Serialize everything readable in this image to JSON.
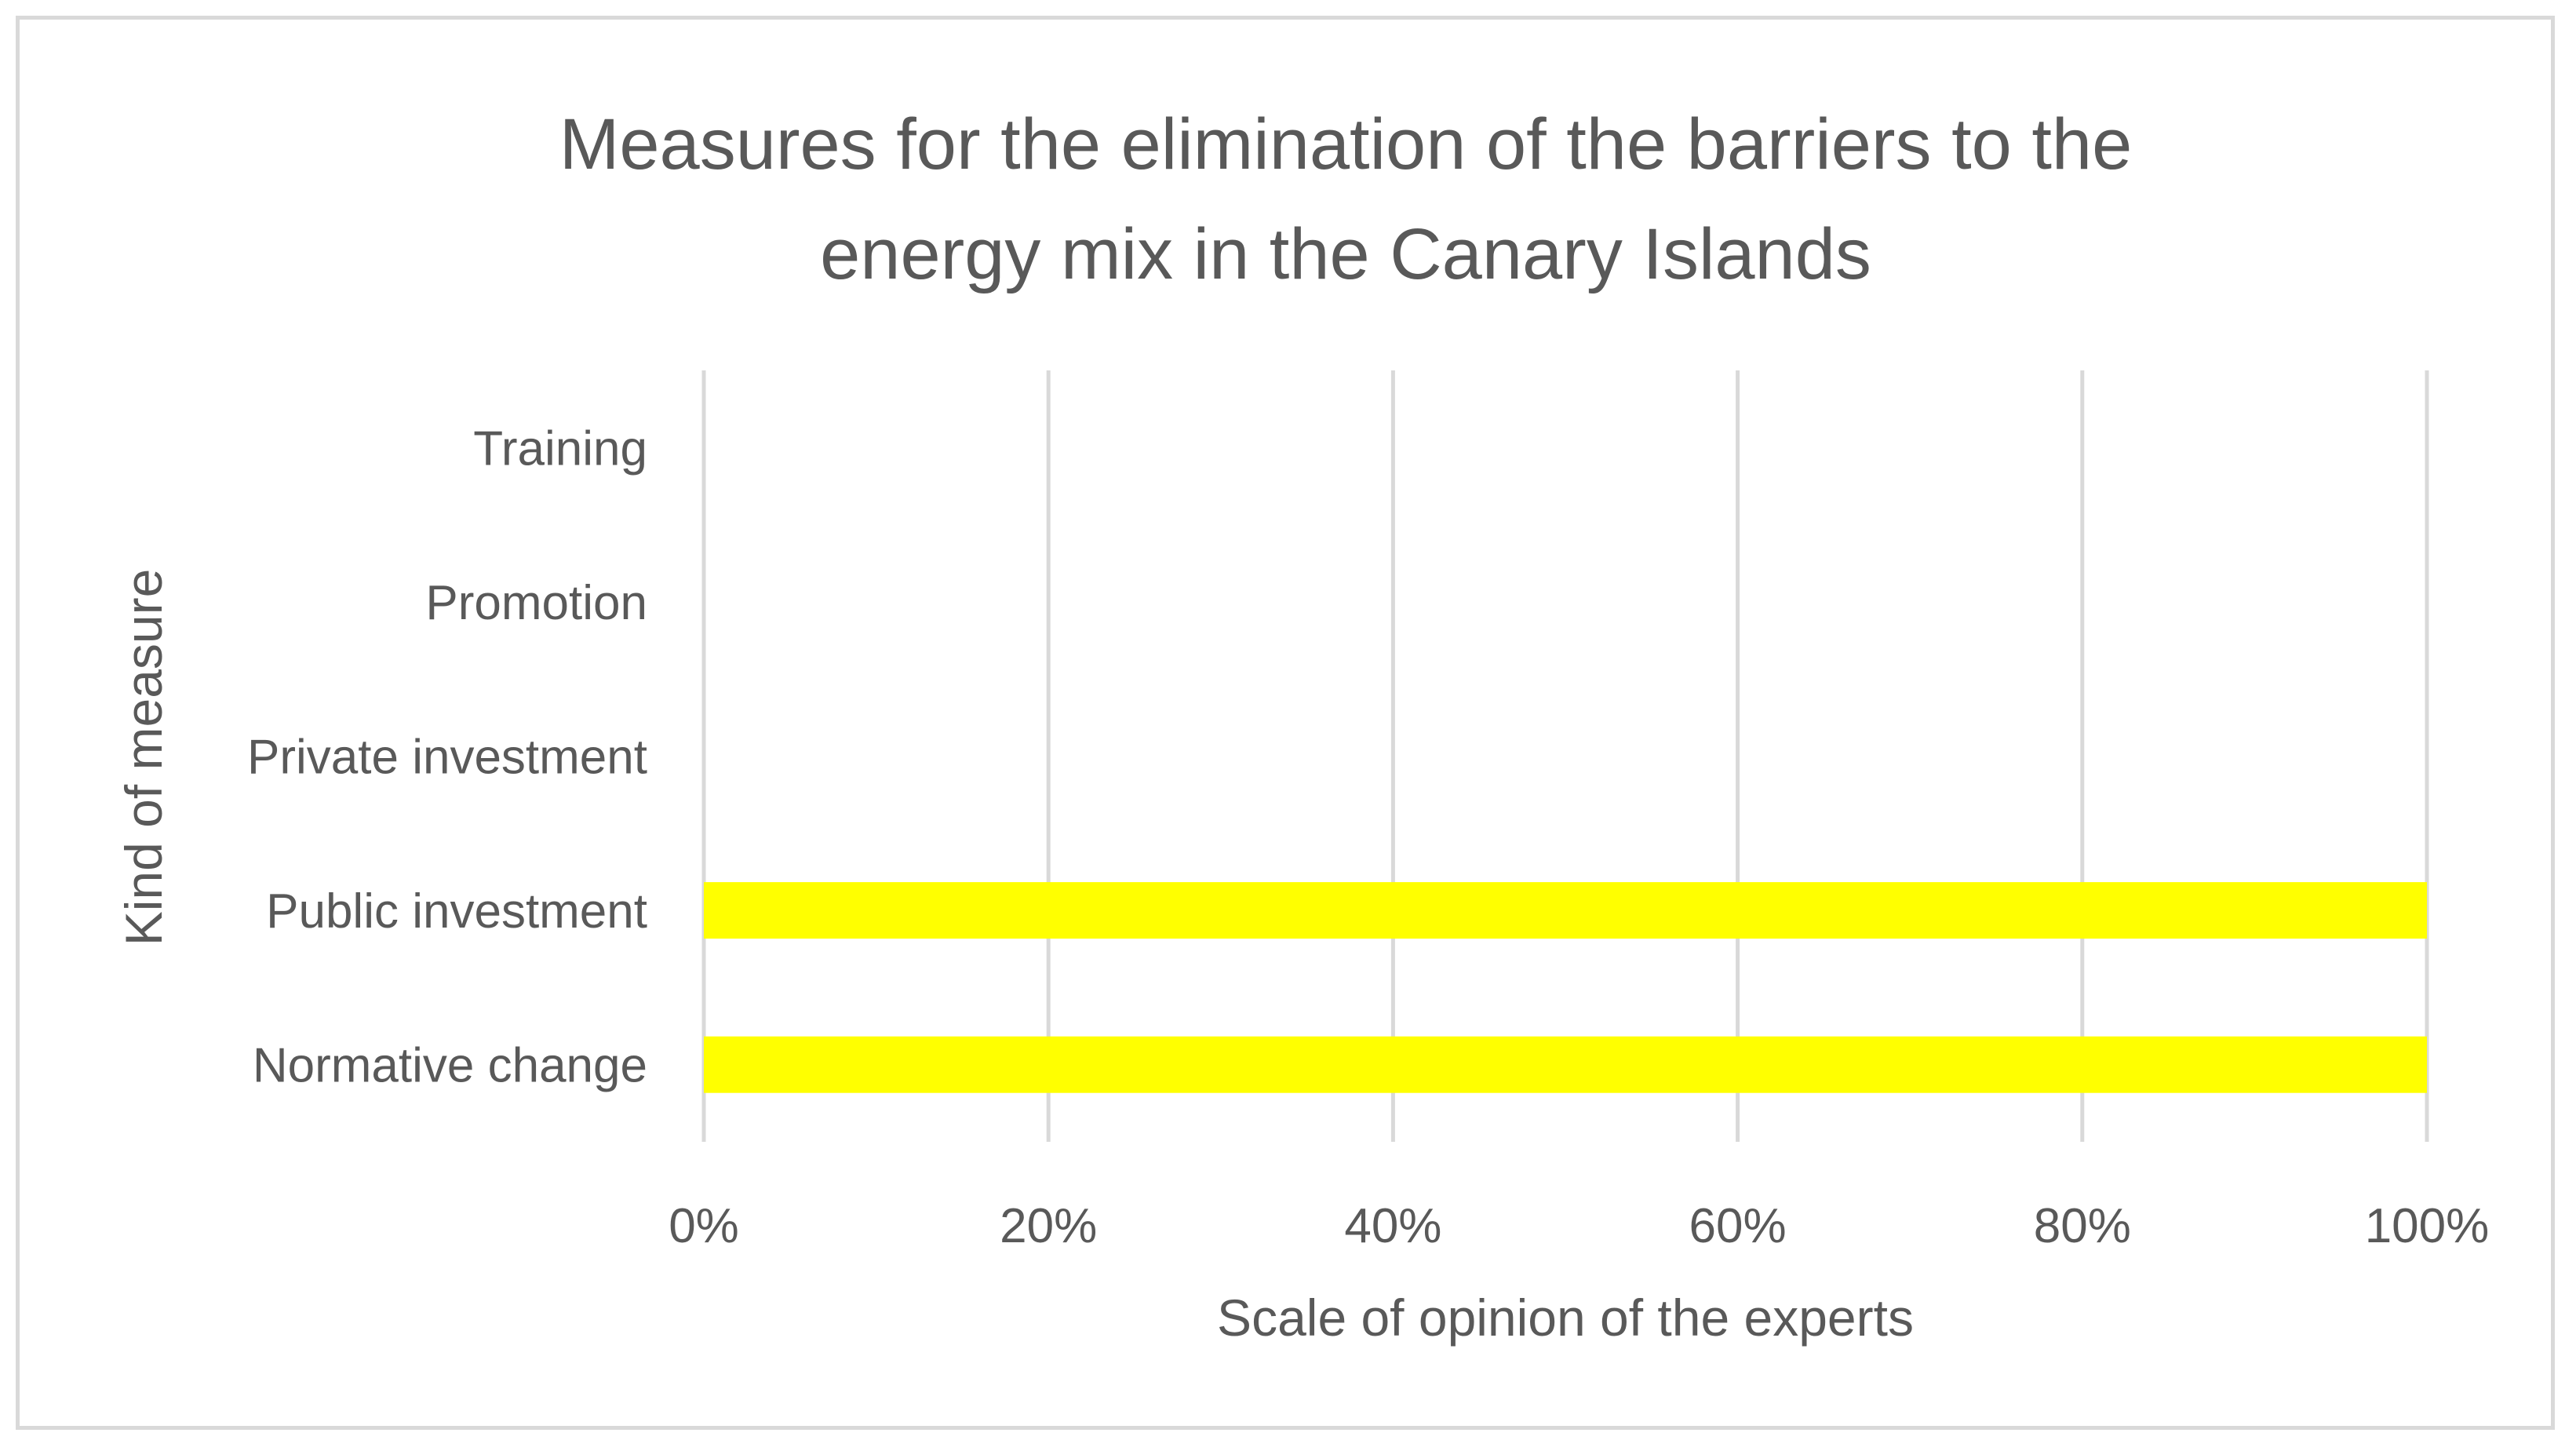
{
  "chart_data": {
    "type": "bar",
    "orientation": "horizontal",
    "title_lines": [
      "Measures for the elimination of the barriers to the",
      "energy mix in the Canary Islands"
    ],
    "xlabel": "Scale of opinion of the experts",
    "ylabel": "Kind of measure",
    "categories": [
      "Training",
      "Promotion",
      "Private investment",
      "Public investment",
      "Normative change"
    ],
    "values": [
      0,
      0,
      0,
      100,
      100
    ],
    "xlim": [
      0,
      100
    ],
    "x_ticks": [
      "0%",
      "20%",
      "40%",
      "60%",
      "80%",
      "100%"
    ],
    "grid": "vertical",
    "legend": "none",
    "bar_color": "#ffff00",
    "grid_color": "#d9d9d9",
    "text_color": "#595959"
  }
}
